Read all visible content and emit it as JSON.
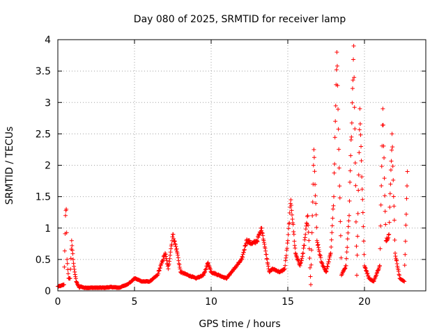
{
  "chart_data": {
    "type": "scatter",
    "title": "Day 080 of 2025, SRMTID for receiver lamp",
    "xlabel": "GPS time / hours",
    "ylabel": "SRMTID / TECUs",
    "xlim": [
      0,
      24
    ],
    "ylim": [
      0,
      4
    ],
    "grid": true,
    "marker": "plus",
    "color": "#ff0000",
    "x_ticks": [
      0,
      5,
      10,
      15,
      20
    ],
    "x_tick_labels": [
      "0",
      "5",
      "10",
      "15",
      "20"
    ],
    "y_ticks": [
      0,
      0.5,
      1,
      1.5,
      2,
      2.5,
      3,
      3.5,
      4
    ],
    "y_tick_labels": [
      "0",
      "0.5",
      "1",
      "1.5",
      "2",
      "2.5",
      "3",
      "3.5",
      "4"
    ],
    "series": [
      {
        "name": "SRMTID",
        "envelope_description": "dense +-marker trace approximating the plotted points",
        "x": [
          0.0,
          0.2,
          0.4,
          0.5,
          0.55,
          0.6,
          0.7,
          0.8,
          0.9,
          1.0,
          1.1,
          1.2,
          1.3,
          1.4,
          1.5,
          1.7,
          2.0,
          2.5,
          3.0,
          3.5,
          4.0,
          4.5,
          4.8,
          5.0,
          5.5,
          6.0,
          6.5,
          7.0,
          7.2,
          7.5,
          7.8,
          8.0,
          8.5,
          9.0,
          9.5,
          9.8,
          10.0,
          10.5,
          11.0,
          11.5,
          12.0,
          12.3,
          12.7,
          13.0,
          13.3,
          13.5,
          13.8,
          14.0,
          14.5,
          14.8,
          15.0,
          15.2,
          15.5,
          15.8,
          16.0,
          16.3,
          16.5,
          16.7,
          16.9,
          17.2,
          17.5,
          17.8,
          18.0,
          18.2,
          18.5,
          18.8,
          19.0,
          19.3,
          19.5,
          19.7,
          20.0,
          20.3,
          20.6,
          21.0,
          21.2,
          21.4,
          21.6,
          21.8,
          22.0,
          22.3,
          22.6,
          22.8
        ],
        "y": [
          0.07,
          0.08,
          0.1,
          1.2,
          1.3,
          0.5,
          0.2,
          0.2,
          0.8,
          0.5,
          0.3,
          0.15,
          0.1,
          0.05,
          0.07,
          0.05,
          0.05,
          0.05,
          0.05,
          0.06,
          0.05,
          0.1,
          0.15,
          0.2,
          0.15,
          0.15,
          0.25,
          0.6,
          0.35,
          0.9,
          0.6,
          0.3,
          0.25,
          0.2,
          0.25,
          0.45,
          0.3,
          0.25,
          0.2,
          0.35,
          0.5,
          0.8,
          0.75,
          0.8,
          1.0,
          0.7,
          0.3,
          0.35,
          0.3,
          0.35,
          0.8,
          1.45,
          0.6,
          0.4,
          0.6,
          1.2,
          0.1,
          2.25,
          0.8,
          0.45,
          0.3,
          0.6,
          1.5,
          3.8,
          0.25,
          0.4,
          1.2,
          3.9,
          0.25,
          2.9,
          0.4,
          0.2,
          0.15,
          0.4,
          2.9,
          0.8,
          0.9,
          2.5,
          0.6,
          0.2,
          0.15,
          1.9
        ]
      }
    ]
  }
}
